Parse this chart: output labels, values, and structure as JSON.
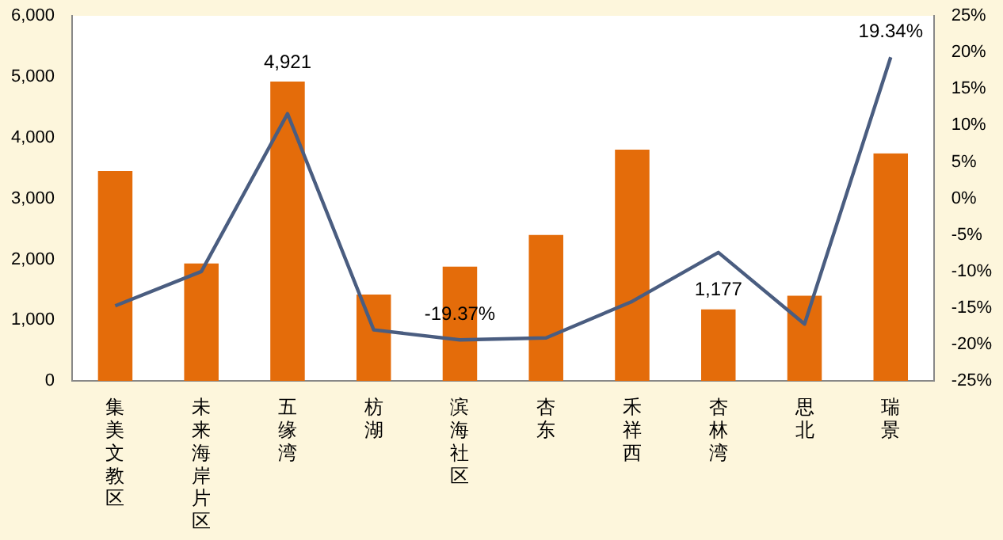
{
  "chart_data": {
    "type": "bar",
    "categories": [
      "集美文教区",
      "未来海岸片区",
      "五缘湾",
      "枋湖",
      "滨海社区",
      "杏东",
      "禾祥西",
      "杏林湾",
      "思北",
      "瑞景"
    ],
    "series": [
      {
        "color": "#e46c0a",
        "values": [
          3450,
          1930,
          4921,
          1420,
          1880,
          2400,
          3800,
          1177,
          1400,
          3740
        ],
        "value_labels": [
          null,
          null,
          "4,921",
          null,
          null,
          null,
          null,
          "1,177",
          null,
          null
        ]
      },
      {
        "type": "line",
        "axis": "y2",
        "color": "#4a5d80",
        "values": [
          -14.7,
          -10,
          11.6,
          -18.0,
          -19.37,
          -19.1,
          -14.1,
          -7.4,
          -17.2,
          19.34
        ],
        "value_labels": [
          null,
          null,
          null,
          null,
          "-19.37%",
          null,
          null,
          null,
          null,
          "19.34%"
        ]
      }
    ],
    "ylim": [
      0,
      6000
    ],
    "yticks": [
      {
        "value": 0,
        "label": "0"
      },
      {
        "value": 1000,
        "label": "1,000"
      },
      {
        "value": 2000,
        "label": "2,000"
      },
      {
        "value": 3000,
        "label": "3,000"
      },
      {
        "value": 4000,
        "label": "4,000"
      },
      {
        "value": 5000,
        "label": "5,000"
      },
      {
        "value": 6000,
        "label": "6,000"
      }
    ],
    "y2lim": [
      -25,
      25
    ],
    "y2ticks": [
      {
        "value": -25,
        "label": "-25%"
      },
      {
        "value": -20,
        "label": "-20%"
      },
      {
        "value": -15,
        "label": "-15%"
      },
      {
        "value": -10,
        "label": "-10%"
      },
      {
        "value": -5,
        "label": "-5%"
      },
      {
        "value": 0,
        "label": "0%"
      },
      {
        "value": 5,
        "label": "5%"
      },
      {
        "value": 10,
        "label": "10%"
      },
      {
        "value": 15,
        "label": "15%"
      },
      {
        "value": 20,
        "label": "20%"
      },
      {
        "value": 25,
        "label": "25%"
      }
    ],
    "grid": false,
    "legend": false,
    "marker": "none"
  }
}
